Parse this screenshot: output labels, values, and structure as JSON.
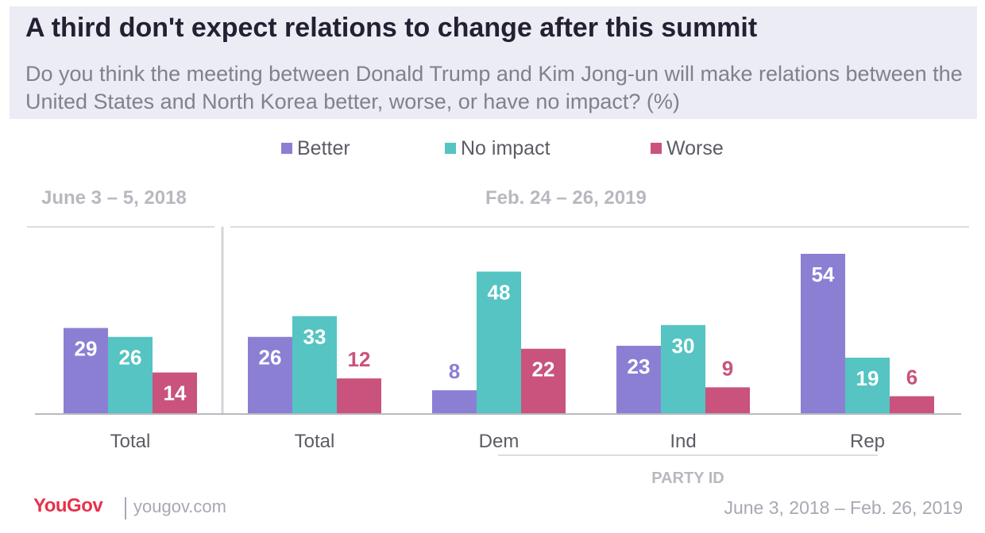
{
  "header": {
    "title": "A third don't expect relations to change after this summit",
    "subtitle": "Do you think the meeting between Donald Trump and Kim Jong-un will make relations between the United States and North Korea better, worse, or have no impact? (%)"
  },
  "legend": [
    {
      "label": "Better",
      "color": "#8b7fd4"
    },
    {
      "label": "No impact",
      "color": "#55c4c2"
    },
    {
      "label": "Worse",
      "color": "#c9537d"
    }
  ],
  "periods": {
    "left": "June 3 – 5, 2018",
    "right": "Feb. 24 – 26, 2019"
  },
  "group_label": "PARTY ID",
  "footer": {
    "brand": "YouGov",
    "url": "yougov.com",
    "date_range": "June 3, 2018 – Feb. 26, 2019"
  },
  "chart_data": {
    "type": "bar",
    "categories": [
      "Total",
      "Total",
      "Dem",
      "Ind",
      "Rep"
    ],
    "series": [
      {
        "name": "Better",
        "values": [
          29,
          26,
          8,
          23,
          54
        ]
      },
      {
        "name": "No impact",
        "values": [
          26,
          33,
          48,
          30,
          19
        ]
      },
      {
        "name": "Worse",
        "values": [
          14,
          12,
          22,
          9,
          6
        ]
      }
    ],
    "colors": [
      "#8b7fd4",
      "#55c4c2",
      "#c9537d"
    ],
    "ylim": [
      0,
      54
    ],
    "grid": false,
    "legend_position": "top"
  }
}
